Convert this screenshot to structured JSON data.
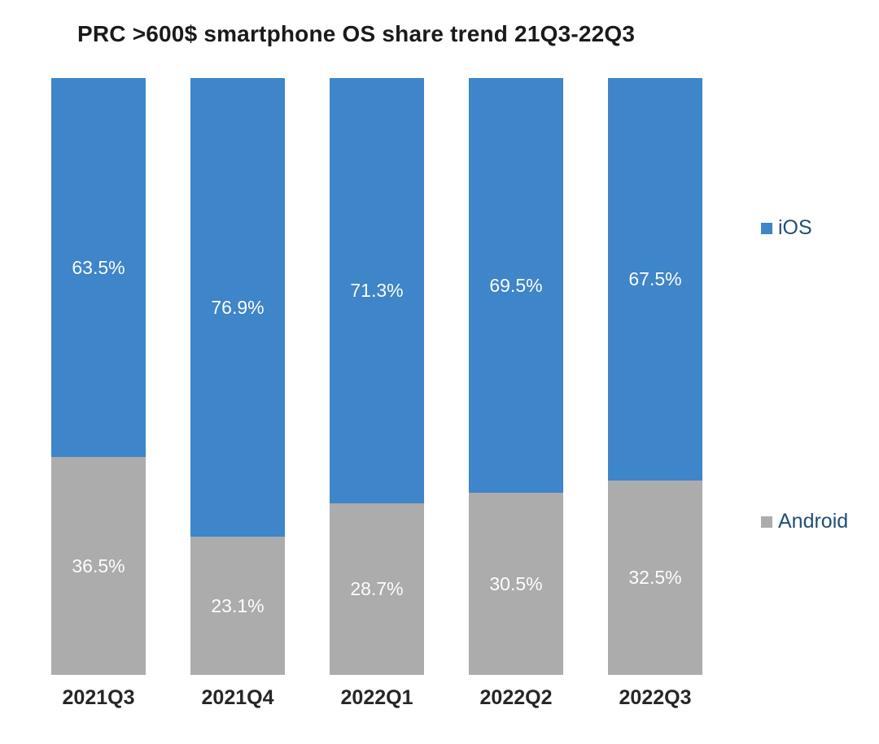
{
  "chart_data": {
    "type": "bar",
    "subtype": "stacked-100",
    "title": "PRC >600$ smartphone OS share trend 21Q3-22Q3",
    "categories": [
      "2021Q3",
      "2021Q4",
      "2022Q1",
      "2022Q2",
      "2022Q3"
    ],
    "series": [
      {
        "name": "iOS",
        "color": "#3E85C9",
        "values": [
          63.5,
          76.9,
          71.3,
          69.5,
          67.5
        ],
        "labels": [
          "63.5%",
          "76.9%",
          "71.3%",
          "69.5%",
          "67.5%"
        ]
      },
      {
        "name": "Android",
        "color": "#ACACAC",
        "values": [
          36.5,
          23.1,
          28.7,
          30.5,
          32.5
        ],
        "labels": [
          "36.5%",
          "23.1%",
          "28.7%",
          "30.5%",
          "32.5%"
        ]
      }
    ],
    "ylim": [
      0,
      100
    ],
    "grid": false,
    "legend": {
      "position": "right",
      "items": [
        {
          "label": "iOS",
          "color": "#3E85C9"
        },
        {
          "label": "Android",
          "color": "#ACACAC"
        }
      ]
    },
    "colors": {
      "background": "#ffffff",
      "title_text": "#1a1a1a",
      "category_text": "#262626",
      "data_label_text": "#ffffff",
      "legend_text": "#1F4E79"
    }
  }
}
